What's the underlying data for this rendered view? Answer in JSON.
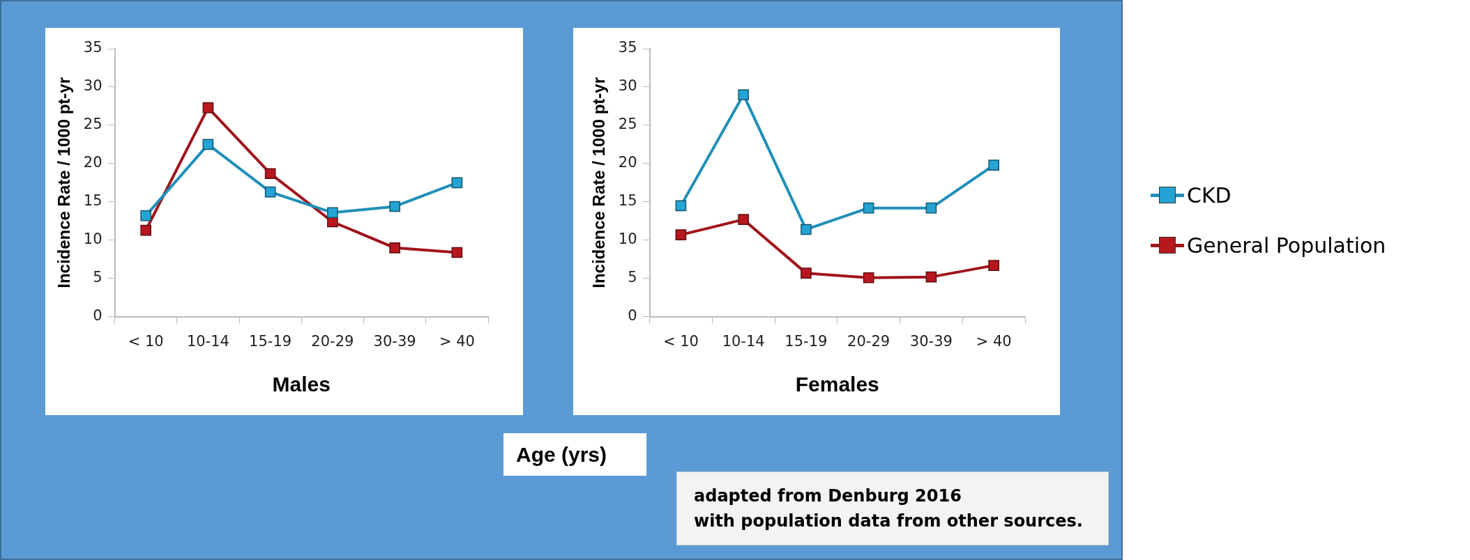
{
  "chart_data": [
    {
      "type": "line",
      "xlabel": "Males",
      "ylabel": "Incidence Rate / 1000 pt-yr",
      "categories": [
        "< 10",
        "10-14",
        "15-19",
        "20-29",
        "30-39",
        "> 40"
      ],
      "ylim": [
        0,
        35
      ],
      "yticks": [
        0,
        5,
        10,
        15,
        20,
        25,
        30,
        35
      ],
      "marker": "square",
      "legend": "right",
      "series": [
        {
          "name": "CKD",
          "color": "#1f8fb8",
          "values": [
            13.2,
            22.5,
            16.3,
            13.6,
            14.4,
            17.5
          ]
        },
        {
          "name": "General Population",
          "color": "#a0141a",
          "values": [
            11.3,
            27.3,
            18.7,
            12.4,
            9.0,
            8.4
          ]
        }
      ],
      "annotations": [
        "Age (yrs)"
      ]
    },
    {
      "type": "line",
      "xlabel": "Females",
      "ylabel": "Incidence Rate / 1000 pt-yr",
      "categories": [
        "< 10",
        "10-14",
        "15-19",
        "20-29",
        "30-39",
        "> 40"
      ],
      "ylim": [
        0,
        35
      ],
      "yticks": [
        0,
        5,
        10,
        15,
        20,
        25,
        30,
        35
      ],
      "marker": "square",
      "series": [
        {
          "color": "#1f8fb8",
          "values": [
            14.5,
            29.0,
            11.4,
            14.2,
            14.2,
            19.8
          ]
        },
        {
          "color": "#a0141a",
          "values": [
            10.7,
            12.7,
            5.7,
            5.1,
            5.2,
            6.7
          ]
        }
      ],
      "annotations": [
        "adapted from Denburg 2016\nwith population data from other sources."
      ]
    }
  ]
}
